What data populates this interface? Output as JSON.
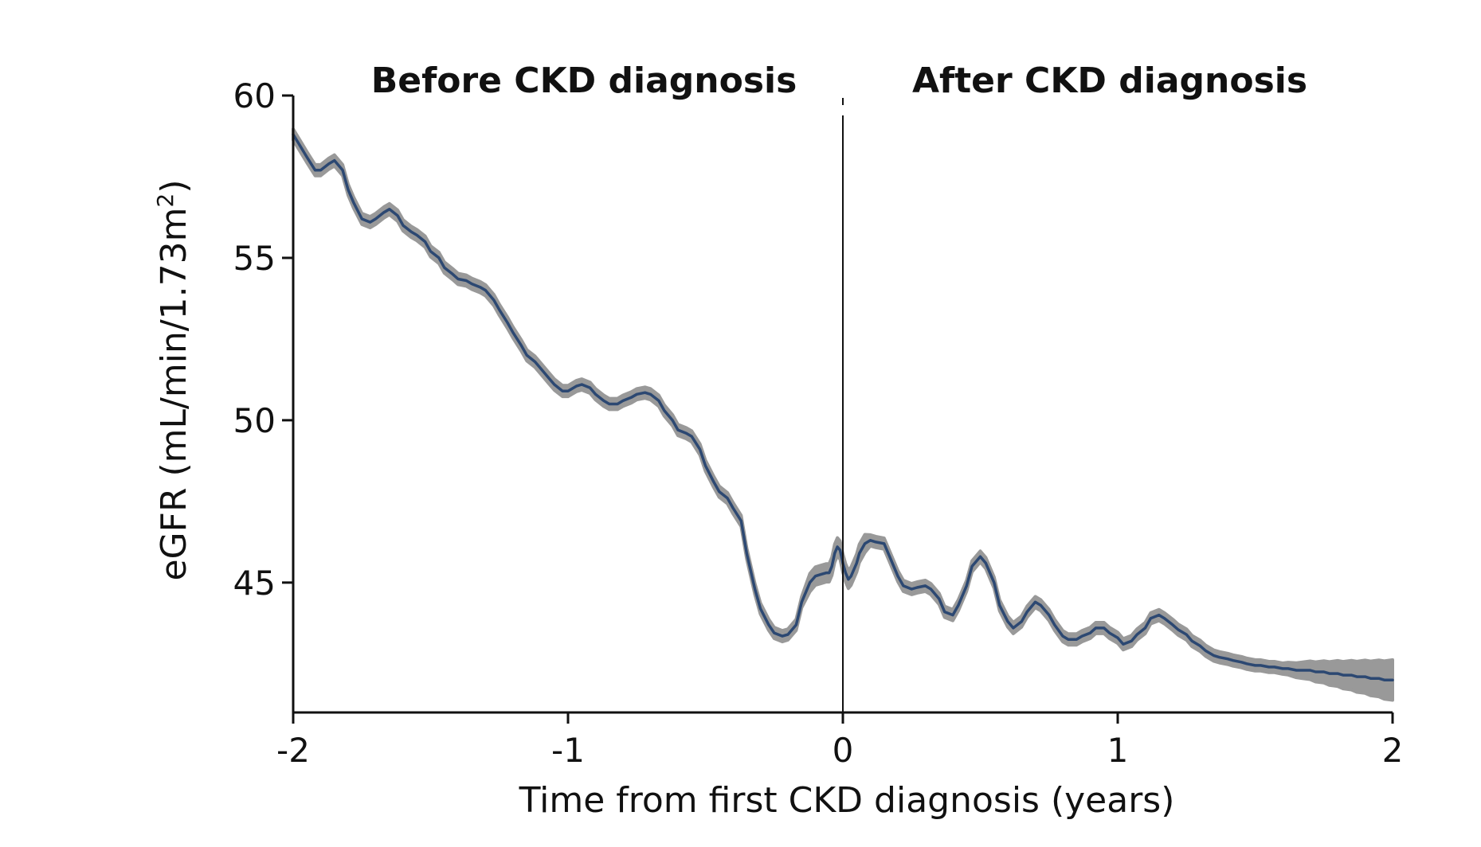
{
  "chart_data": {
    "type": "line",
    "xlabel": "Time from first CKD diagnosis (years)",
    "ylabel": "eGFR (mL/min/1.73m",
    "ylabel_superscript": "2",
    "ylabel_suffix": ")",
    "xlim": [
      -2,
      2
    ],
    "ylim": [
      41,
      60
    ],
    "xticks": [
      -2,
      -1,
      0,
      1,
      2
    ],
    "xtick_labels": [
      "-2",
      "-1",
      "0",
      "1",
      "2"
    ],
    "yticks": [
      45,
      50,
      55,
      60
    ],
    "ytick_labels": [
      "45",
      "50",
      "55",
      "60"
    ],
    "grid": false,
    "legend": "none",
    "annotations": [
      {
        "text": "Before CKD diagnosis",
        "x": -1,
        "y": 60.5
      },
      {
        "text": "After CKD diagnosis",
        "x": 1,
        "y": 60.5
      }
    ],
    "vline": {
      "x": 0
    },
    "series": [
      {
        "color": "#2c4872",
        "band_color": "#999999",
        "x": [
          -2.0,
          -1.95,
          -1.92,
          -1.9,
          -1.87,
          -1.85,
          -1.82,
          -1.8,
          -1.78,
          -1.75,
          -1.72,
          -1.7,
          -1.67,
          -1.65,
          -1.62,
          -1.6,
          -1.57,
          -1.55,
          -1.52,
          -1.5,
          -1.47,
          -1.45,
          -1.42,
          -1.4,
          -1.37,
          -1.35,
          -1.32,
          -1.3,
          -1.27,
          -1.25,
          -1.22,
          -1.2,
          -1.17,
          -1.15,
          -1.12,
          -1.1,
          -1.07,
          -1.05,
          -1.02,
          -1.0,
          -0.97,
          -0.95,
          -0.92,
          -0.9,
          -0.87,
          -0.85,
          -0.82,
          -0.8,
          -0.77,
          -0.75,
          -0.72,
          -0.7,
          -0.67,
          -0.65,
          -0.62,
          -0.6,
          -0.57,
          -0.55,
          -0.52,
          -0.5,
          -0.47,
          -0.45,
          -0.42,
          -0.4,
          -0.37,
          -0.35,
          -0.32,
          -0.3,
          -0.27,
          -0.25,
          -0.22,
          -0.2,
          -0.17,
          -0.15,
          -0.12,
          -0.1,
          -0.08,
          -0.06,
          -0.05,
          -0.04,
          -0.03,
          -0.02,
          -0.01,
          0.0,
          0.01,
          0.02,
          0.03,
          0.04,
          0.05,
          0.06,
          0.08,
          0.1,
          0.12,
          0.15,
          0.17,
          0.2,
          0.22,
          0.25,
          0.27,
          0.3,
          0.32,
          0.35,
          0.37,
          0.4,
          0.42,
          0.45,
          0.47,
          0.5,
          0.52,
          0.55,
          0.57,
          0.6,
          0.62,
          0.65,
          0.67,
          0.7,
          0.72,
          0.75,
          0.77,
          0.8,
          0.82,
          0.85,
          0.87,
          0.9,
          0.92,
          0.95,
          0.97,
          1.0,
          1.02,
          1.05,
          1.07,
          1.1,
          1.12,
          1.15,
          1.17,
          1.2,
          1.22,
          1.25,
          1.27,
          1.3,
          1.32,
          1.35,
          1.37,
          1.4,
          1.42,
          1.45,
          1.47,
          1.5,
          1.52,
          1.55,
          1.57,
          1.6,
          1.62,
          1.65,
          1.67,
          1.7,
          1.72,
          1.75,
          1.77,
          1.8,
          1.82,
          1.85,
          1.87,
          1.9,
          1.92,
          1.95,
          1.97,
          2.0
        ],
        "y": [
          58.8,
          58.1,
          57.7,
          57.7,
          57.9,
          58.0,
          57.7,
          57.1,
          56.7,
          56.2,
          56.1,
          56.2,
          56.4,
          56.5,
          56.3,
          56.0,
          55.8,
          55.7,
          55.5,
          55.2,
          55.0,
          54.7,
          54.5,
          54.35,
          54.3,
          54.2,
          54.1,
          54.0,
          53.7,
          53.4,
          53.0,
          52.7,
          52.3,
          52.0,
          51.8,
          51.6,
          51.3,
          51.1,
          50.9,
          50.9,
          51.05,
          51.1,
          51.0,
          50.8,
          50.6,
          50.5,
          50.5,
          50.6,
          50.7,
          50.8,
          50.85,
          50.8,
          50.6,
          50.3,
          50.0,
          49.7,
          49.6,
          49.5,
          49.1,
          48.6,
          48.1,
          47.8,
          47.6,
          47.3,
          46.9,
          45.9,
          44.8,
          44.2,
          43.7,
          43.45,
          43.35,
          43.4,
          43.7,
          44.4,
          45.0,
          45.2,
          45.25,
          45.3,
          45.3,
          45.5,
          45.9,
          46.1,
          46.0,
          45.6,
          45.3,
          45.1,
          45.2,
          45.4,
          45.6,
          45.9,
          46.2,
          46.3,
          46.25,
          46.2,
          45.8,
          45.2,
          44.9,
          44.8,
          44.85,
          44.9,
          44.8,
          44.5,
          44.1,
          44.0,
          44.3,
          44.9,
          45.5,
          45.8,
          45.6,
          45.0,
          44.3,
          43.8,
          43.6,
          43.8,
          44.1,
          44.4,
          44.3,
          44.0,
          43.7,
          43.35,
          43.25,
          43.25,
          43.35,
          43.45,
          43.6,
          43.6,
          43.45,
          43.3,
          43.1,
          43.2,
          43.4,
          43.6,
          43.9,
          44.0,
          43.9,
          43.7,
          43.55,
          43.4,
          43.2,
          43.05,
          42.9,
          42.75,
          42.7,
          42.65,
          42.6,
          42.55,
          42.5,
          42.45,
          42.45,
          42.4,
          42.4,
          42.35,
          42.35,
          42.3,
          42.3,
          42.3,
          42.25,
          42.25,
          42.2,
          42.2,
          42.15,
          42.15,
          42.1,
          42.1,
          42.05,
          42.05,
          42.0,
          42.0
        ]
      }
    ]
  }
}
